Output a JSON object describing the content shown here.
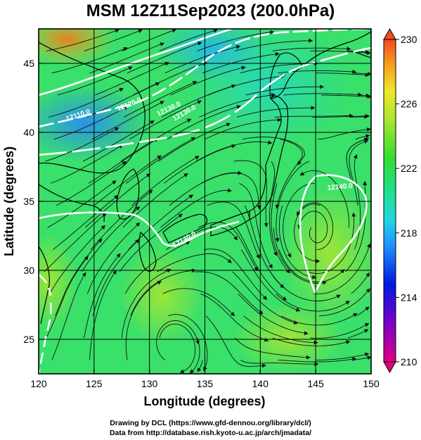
{
  "title": "MSM 12Z11Sep2023 (200.0hPa)",
  "xaxis": {
    "label": "Longitude (degrees)",
    "ticks": [
      120,
      125,
      130,
      135,
      140,
      145,
      150
    ],
    "range": [
      120,
      150
    ]
  },
  "yaxis": {
    "label": "Latitude  (degrees)",
    "ticks": [
      25,
      30,
      35,
      40,
      45
    ],
    "range": [
      22.5,
      47.5
    ]
  },
  "colorbar": {
    "ticks": [
      230,
      226,
      222,
      218,
      214,
      210
    ],
    "range": [
      210,
      230
    ],
    "colors": [
      "#e0007f",
      "#7a00c8",
      "#0019e0",
      "#1e90ff",
      "#22d8e0",
      "#22e07a",
      "#32dc32",
      "#a8e632",
      "#f0e628",
      "#f5a020",
      "#f04a20"
    ]
  },
  "contour_labels": [
    "12110.0",
    "12120.0",
    "12130.0",
    "12140.0",
    "12140.0",
    "12130.0"
  ],
  "credits": {
    "line1": "Drawing by DCL (https://www.gfd-dennou.org/library/dcl/)",
    "line2": "Data from http://database.rish.kyoto-u.ac.jp/arch/jmadata/"
  }
}
